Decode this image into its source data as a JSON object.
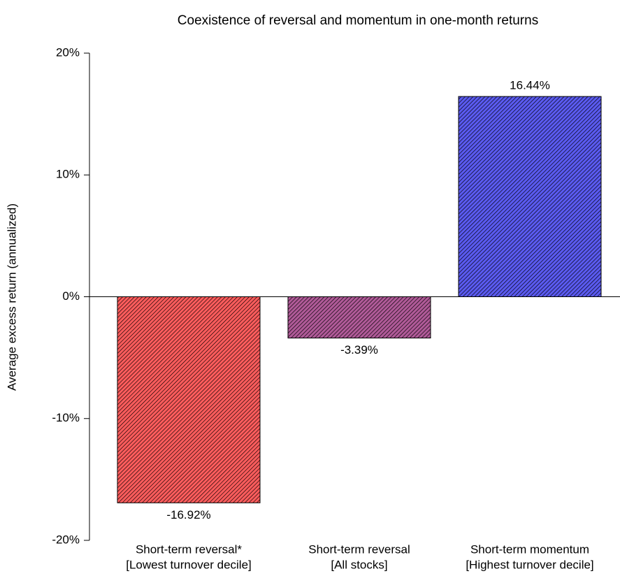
{
  "chart_data": {
    "type": "bar",
    "title": "Coexistence of reversal and momentum in one-month returns",
    "y_label": "Average excess return (annualized)",
    "categories": [
      [
        "Short-term reversal*",
        "[Lowest turnover decile]"
      ],
      [
        "Short-term reversal",
        "[All stocks]"
      ],
      [
        "Short-term momentum",
        "[Highest turnover decile]"
      ]
    ],
    "values": [
      -16.92,
      -3.39,
      16.44
    ],
    "value_labels": [
      "-16.92%",
      "-3.39%",
      "16.44%"
    ],
    "colors": [
      "#ff5c5c",
      "#b05a98",
      "#5a5af0"
    ],
    "hatch": true,
    "ylim": [
      -20,
      20
    ],
    "yticks": [
      {
        "value": -20,
        "label": "-20%"
      },
      {
        "value": -10,
        "label": "-10%"
      },
      {
        "value": 0,
        "label": "0%"
      },
      {
        "value": 10,
        "label": "10%"
      },
      {
        "value": 20,
        "label": "20%"
      }
    ]
  }
}
